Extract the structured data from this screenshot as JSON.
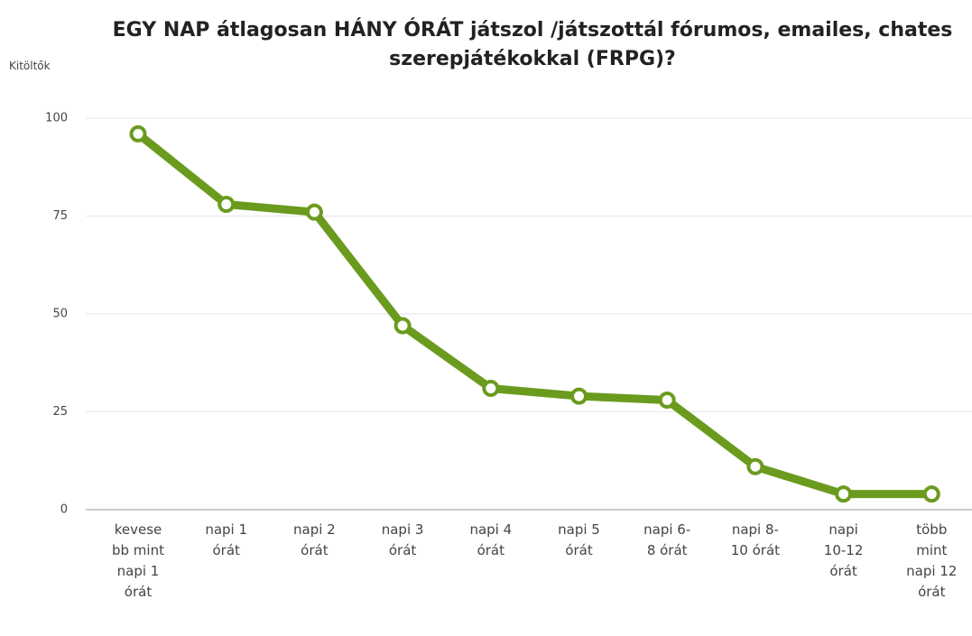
{
  "chart_data": {
    "type": "line",
    "title": "EGY NAP átlagosan HÁNY ÓRÁT játszol /játszottál fórumos, emailes, chates szerepjátékokkal (FRPG)?",
    "y_label": "Kitöltők",
    "categories": [
      "kevesebb mint napi 1 órát",
      "napi 1 órát",
      "napi 2 órát",
      "napi 3 órát",
      "napi 4 órát",
      "napi 5 órát",
      "napi 6-8 órát",
      "napi 8-10 órát",
      "napi 10-12 órát",
      "több mint napi 12 órát"
    ],
    "values": [
      96,
      78,
      76,
      47,
      31,
      29,
      28,
      11,
      4,
      4
    ],
    "color": "#6b9b1e",
    "ylim": [
      0,
      100
    ],
    "yticks": [
      0,
      25,
      50,
      75,
      100
    ],
    "grid": true
  }
}
